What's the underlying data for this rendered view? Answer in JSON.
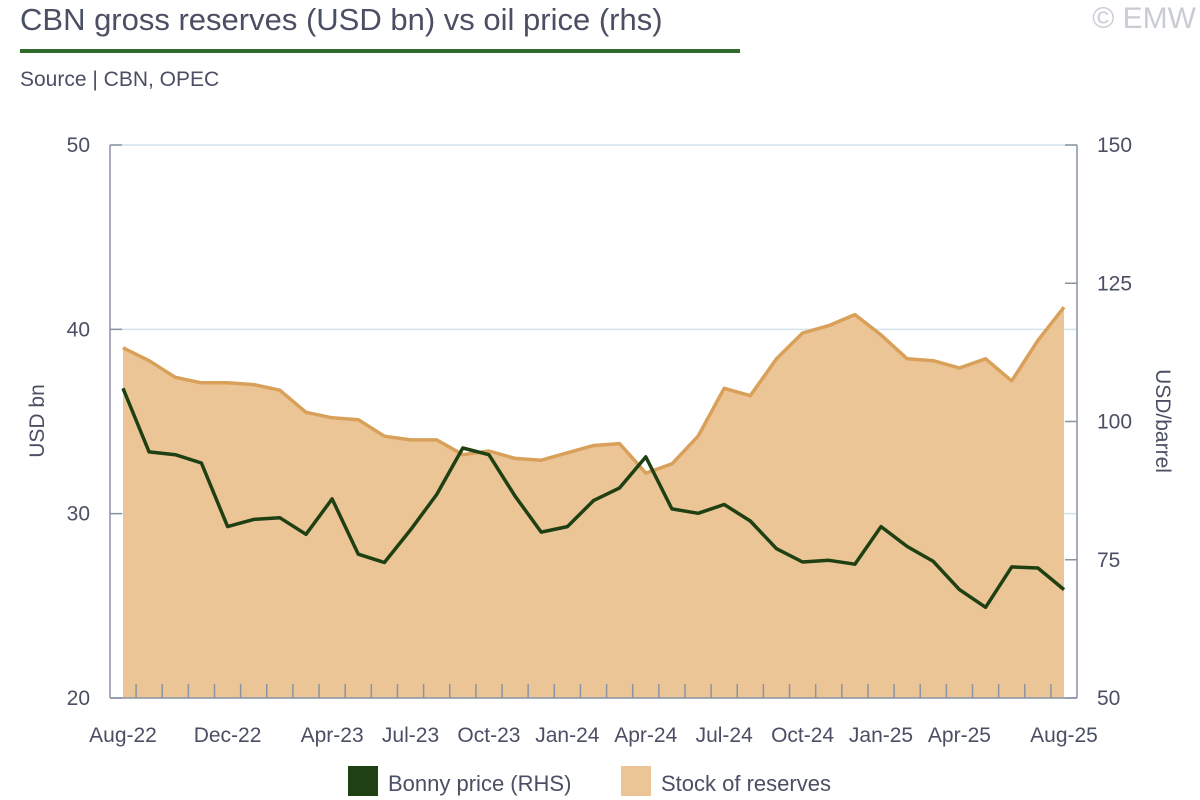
{
  "header": {
    "title": "CBN gross reserves (USD bn) vs oil price (rhs)",
    "source": "Source | CBN, OPEC",
    "watermark": "© EMW"
  },
  "colors": {
    "reserves_fill": "#ebc596",
    "reserves_line": "#d9a05a",
    "price_line": "#1f4012",
    "grid": "#d3e3ea",
    "axis": "#8a93a3",
    "title_rule": "#2f6b2a"
  },
  "chart_data": {
    "type": "area",
    "title": "CBN gross reserves (USD bn) vs oil price (rhs)",
    "grid": true,
    "legend_position": "bottom",
    "x": [
      "Aug-22",
      "Sep-22",
      "Oct-22",
      "Nov-22",
      "Dec-22",
      "Jan-23",
      "Feb-23",
      "Mar-23",
      "Apr-23",
      "May-23",
      "Jun-23",
      "Jul-23",
      "Aug-23",
      "Sep-23",
      "Oct-23",
      "Nov-23",
      "Dec-23",
      "Jan-24",
      "Feb-24",
      "Mar-24",
      "Apr-24",
      "May-24",
      "Jun-24",
      "Jul-24",
      "Aug-24",
      "Sep-24",
      "Oct-24",
      "Nov-24",
      "Dec-24",
      "Jan-25",
      "Feb-25",
      "Mar-25",
      "Apr-25",
      "May-25",
      "Jun-25",
      "Jul-25",
      "Aug-25"
    ],
    "x_tick_labels": [
      "Aug-22",
      "Dec-22",
      "Apr-23",
      "Jul-23",
      "Oct-23",
      "Jan-24",
      "Apr-24",
      "Jul-24",
      "Oct-24",
      "Jan-25",
      "Apr-25",
      "Aug-25"
    ],
    "x_tick_indices": [
      0,
      4,
      8,
      11,
      14,
      17,
      20,
      23,
      26,
      29,
      32,
      36
    ],
    "y_left": {
      "label": "USD bn",
      "range": [
        20,
        50
      ],
      "ticks": [
        20,
        30,
        40,
        50
      ]
    },
    "y_right": {
      "label": "USD/barrel",
      "range": [
        50,
        150
      ],
      "ticks": [
        50,
        75,
        100,
        125,
        150
      ]
    },
    "series": [
      {
        "name": "Stock of reserves",
        "kind": "area",
        "axis": "left",
        "values": [
          39.0,
          38.3,
          37.4,
          37.1,
          37.1,
          37.0,
          36.7,
          35.5,
          35.2,
          35.1,
          34.2,
          34.0,
          34.0,
          33.2,
          33.4,
          33.0,
          32.9,
          33.3,
          33.7,
          33.8,
          32.2,
          32.7,
          34.2,
          36.8,
          36.4,
          38.4,
          39.8,
          40.2,
          40.8,
          39.7,
          38.4,
          38.3,
          37.9,
          38.4,
          37.2,
          39.4,
          41.2
        ]
      },
      {
        "name": "Bonny price (RHS)",
        "kind": "line",
        "axis": "right",
        "values": [
          106.0,
          94.5,
          94.0,
          92.5,
          81.0,
          82.3,
          82.6,
          79.6,
          86.0,
          76.0,
          74.5,
          80.4,
          86.8,
          95.2,
          94.0,
          86.5,
          80.0,
          81.0,
          85.7,
          88.0,
          93.6,
          84.2,
          83.4,
          85.0,
          82.0,
          77.0,
          74.6,
          74.9,
          74.2,
          81.0,
          77.4,
          74.7,
          69.6,
          66.4,
          73.7,
          73.5,
          69.6
        ]
      }
    ]
  }
}
